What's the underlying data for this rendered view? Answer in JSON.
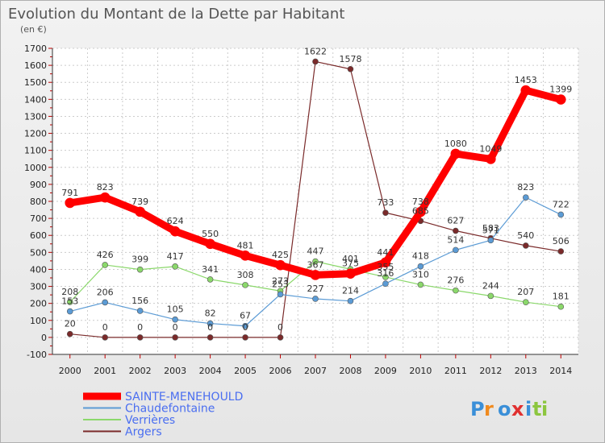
{
  "chart_data": {
    "type": "line",
    "title": "Evolution du Montant de la Dette par Habitant",
    "subtitle": "(en €)",
    "xlabel": "",
    "ylabel": "",
    "x": [
      "2000",
      "2001",
      "2002",
      "2003",
      "2004",
      "2005",
      "2006",
      "2007",
      "2008",
      "2009",
      "2010",
      "2011",
      "2012",
      "2013",
      "2014"
    ],
    "ylim": [
      -100,
      1700
    ],
    "yticks": [
      "-100",
      "0",
      "100",
      "200",
      "300",
      "400",
      "500",
      "600",
      "700",
      "800",
      "900",
      "1000",
      "1100",
      "1200",
      "1300",
      "1400",
      "1500",
      "1600",
      "1700"
    ],
    "grid": true,
    "legend_position": "bottom-left",
    "series": [
      {
        "name": "SAINTE-MENEHOULD",
        "color": "#ff0000",
        "values": [
          791,
          823,
          739,
          624,
          550,
          481,
          425,
          367,
          375,
          441,
          738,
          1080,
          1049,
          1453,
          1399
        ]
      },
      {
        "name": "Chaudefontaine",
        "color": "#5b9bd5",
        "values": [
          153,
          206,
          156,
          105,
          82,
          67,
          253,
          227,
          214,
          316,
          418,
          514,
          571,
          823,
          722
        ]
      },
      {
        "name": "Verrières",
        "color": "#8bd86b",
        "values": [
          208,
          426,
          399,
          417,
          341,
          308,
          273,
          447,
          401,
          355,
          310,
          276,
          244,
          207,
          181
        ]
      },
      {
        "name": "Argers",
        "color": "#7a2a2a",
        "values": [
          20,
          0,
          0,
          0,
          0,
          0,
          0,
          1622,
          1578,
          733,
          685,
          627,
          583,
          540,
          506
        ]
      }
    ]
  },
  "watermark": "Proxiti"
}
